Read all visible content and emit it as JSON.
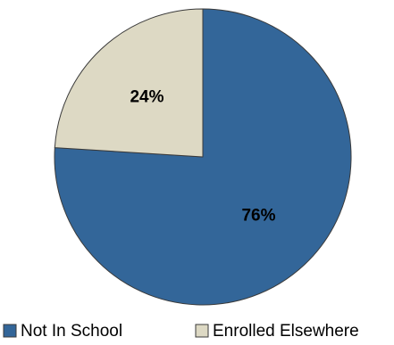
{
  "chart_data": {
    "type": "pie",
    "labels": [
      "Not In School",
      "Enrolled Elsewhere"
    ],
    "values": [
      76,
      24
    ],
    "data_labels": [
      "76%",
      "24%"
    ],
    "colors": [
      "#336699",
      "#DDD9C4"
    ],
    "start_angle": "12 o'clock",
    "direction": "clockwise",
    "legend_position": "bottom"
  }
}
